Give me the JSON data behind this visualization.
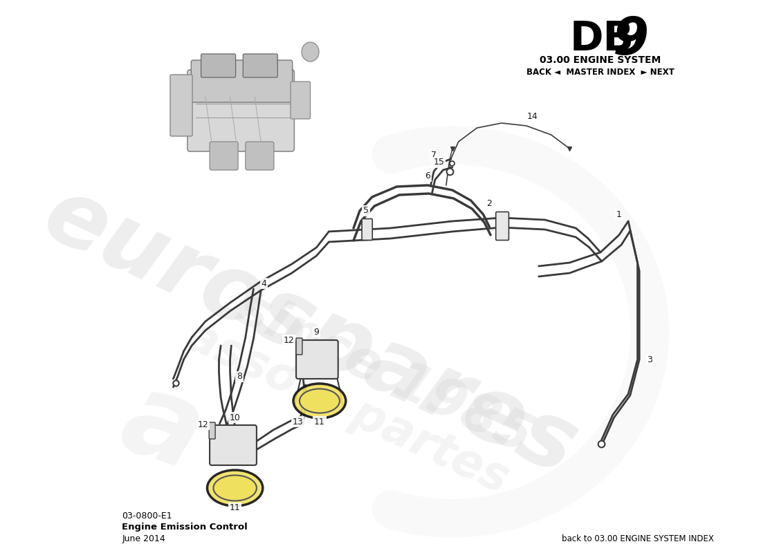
{
  "title_db9_text": "DB",
  "title_9_text": "9",
  "title_system": "03.00 ENGINE SYSTEM",
  "nav_text": "BACK ◄  MASTER INDEX  ► NEXT",
  "part_number": "03-0800-E1",
  "part_name": "Engine Emission Control",
  "date": "June 2014",
  "back_index_text": "back to 03.00 ENGINE SYSTEM INDEX",
  "bg_color": "#ffffff",
  "line_color": "#3a3a3a",
  "label_color": "#1a1a1a",
  "wm_color1": "#d5d5d5",
  "wm_color2": "#e8e8e8",
  "wm_yellow": "#f0e060"
}
